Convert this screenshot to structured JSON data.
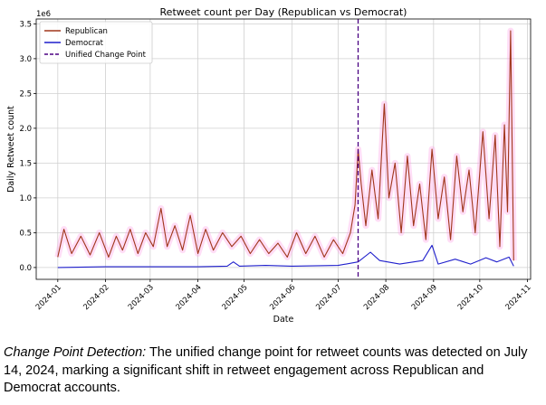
{
  "chart_data": {
    "type": "line",
    "title": "Retweet count per Day (Republican vs Democrat)",
    "xlabel": "Date",
    "ylabel": "Daily Retweet count",
    "y_scale_label": "1e6",
    "xlim": [
      "2023-12-18",
      "2024-11-03"
    ],
    "ylim": [
      -0.17,
      3.57
    ],
    "y_ticks": [
      "0.0",
      "0.5",
      "1.0",
      "1.5",
      "2.0",
      "2.5",
      "3.0",
      "3.5"
    ],
    "x_ticks": [
      "2024-01",
      "2024-02",
      "2024-03",
      "2024-04",
      "2024-05",
      "2024-06",
      "2024-07",
      "2024-08",
      "2024-09",
      "2024-10",
      "2024-11"
    ],
    "grid": true,
    "legend_position": "top-left",
    "series": [
      {
        "name": "Republican",
        "color": "#a0361b",
        "points": [
          [
            "2024-01-01",
            0.15
          ],
          [
            "2024-01-05",
            0.55
          ],
          [
            "2024-01-10",
            0.2
          ],
          [
            "2024-01-16",
            0.45
          ],
          [
            "2024-01-22",
            0.18
          ],
          [
            "2024-01-28",
            0.5
          ],
          [
            "2024-02-03",
            0.15
          ],
          [
            "2024-02-08",
            0.45
          ],
          [
            "2024-02-12",
            0.25
          ],
          [
            "2024-02-17",
            0.55
          ],
          [
            "2024-02-22",
            0.2
          ],
          [
            "2024-02-27",
            0.5
          ],
          [
            "2024-03-03",
            0.3
          ],
          [
            "2024-03-08",
            0.85
          ],
          [
            "2024-03-12",
            0.3
          ],
          [
            "2024-03-17",
            0.6
          ],
          [
            "2024-03-22",
            0.25
          ],
          [
            "2024-03-27",
            0.75
          ],
          [
            "2024-04-01",
            0.2
          ],
          [
            "2024-04-06",
            0.55
          ],
          [
            "2024-04-11",
            0.25
          ],
          [
            "2024-04-17",
            0.5
          ],
          [
            "2024-04-23",
            0.3
          ],
          [
            "2024-04-29",
            0.45
          ],
          [
            "2024-05-05",
            0.2
          ],
          [
            "2024-05-11",
            0.4
          ],
          [
            "2024-05-17",
            0.2
          ],
          [
            "2024-05-23",
            0.35
          ],
          [
            "2024-05-29",
            0.15
          ],
          [
            "2024-06-04",
            0.5
          ],
          [
            "2024-06-10",
            0.2
          ],
          [
            "2024-06-16",
            0.45
          ],
          [
            "2024-06-22",
            0.15
          ],
          [
            "2024-06-28",
            0.4
          ],
          [
            "2024-07-04",
            0.2
          ],
          [
            "2024-07-09",
            0.5
          ],
          [
            "2024-07-12",
            0.9
          ],
          [
            "2024-07-14",
            1.7
          ],
          [
            "2024-07-16",
            1.2
          ],
          [
            "2024-07-19",
            0.6
          ],
          [
            "2024-07-23",
            1.4
          ],
          [
            "2024-07-27",
            0.7
          ],
          [
            "2024-07-31",
            2.35
          ],
          [
            "2024-08-03",
            1.0
          ],
          [
            "2024-08-07",
            1.5
          ],
          [
            "2024-08-11",
            0.5
          ],
          [
            "2024-08-15",
            1.6
          ],
          [
            "2024-08-19",
            0.6
          ],
          [
            "2024-08-23",
            1.2
          ],
          [
            "2024-08-27",
            0.4
          ],
          [
            "2024-08-31",
            1.7
          ],
          [
            "2024-09-04",
            0.7
          ],
          [
            "2024-09-08",
            1.3
          ],
          [
            "2024-09-12",
            0.4
          ],
          [
            "2024-09-16",
            1.6
          ],
          [
            "2024-09-20",
            0.8
          ],
          [
            "2024-09-24",
            1.4
          ],
          [
            "2024-09-28",
            0.5
          ],
          [
            "2024-10-03",
            1.95
          ],
          [
            "2024-10-07",
            0.7
          ],
          [
            "2024-10-11",
            1.9
          ],
          [
            "2024-10-14",
            0.3
          ],
          [
            "2024-10-17",
            2.05
          ],
          [
            "2024-10-19",
            0.8
          ],
          [
            "2024-10-21",
            3.4
          ],
          [
            "2024-10-23",
            0.1
          ]
        ]
      },
      {
        "name": "Democrat",
        "color": "#1f1fcc",
        "points": [
          [
            "2024-01-01",
            0.0
          ],
          [
            "2024-02-01",
            0.01
          ],
          [
            "2024-03-01",
            0.01
          ],
          [
            "2024-04-01",
            0.01
          ],
          [
            "2024-04-20",
            0.02
          ],
          [
            "2024-04-24",
            0.08
          ],
          [
            "2024-04-28",
            0.02
          ],
          [
            "2024-05-15",
            0.03
          ],
          [
            "2024-06-01",
            0.02
          ],
          [
            "2024-07-01",
            0.03
          ],
          [
            "2024-07-14",
            0.08
          ],
          [
            "2024-07-22",
            0.22
          ],
          [
            "2024-07-28",
            0.1
          ],
          [
            "2024-08-10",
            0.05
          ],
          [
            "2024-08-25",
            0.1
          ],
          [
            "2024-08-31",
            0.32
          ],
          [
            "2024-09-04",
            0.05
          ],
          [
            "2024-09-15",
            0.12
          ],
          [
            "2024-09-25",
            0.05
          ],
          [
            "2024-10-05",
            0.14
          ],
          [
            "2024-10-12",
            0.08
          ],
          [
            "2024-10-20",
            0.15
          ],
          [
            "2024-10-23",
            0.02
          ]
        ]
      },
      {
        "name": "Unified Change Point",
        "color": "#4b0082",
        "style": "dashed",
        "date": "2024-07-14"
      }
    ]
  },
  "caption": {
    "lead": "Change Point Detection:",
    "body": " The unified change point for retweet counts was detected on July 14, 2024, marking a significant shift in retweet engagement across Republican and Democrat accounts."
  }
}
